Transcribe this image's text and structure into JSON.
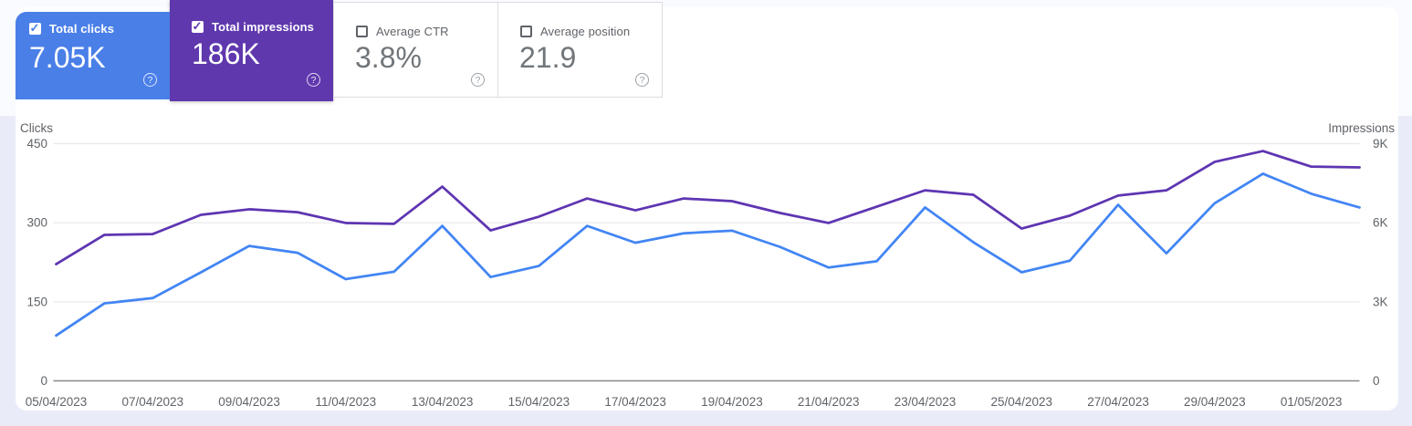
{
  "tiles": [
    {
      "label": "Total clicks",
      "value": "7.05K",
      "checked": true,
      "color": "#4a7fe8"
    },
    {
      "label": "Total impressions",
      "value": "186K",
      "checked": true,
      "color": "#5f38ae"
    },
    {
      "label": "Average CTR",
      "value": "3.8%",
      "checked": false
    },
    {
      "label": "Average position",
      "value": "21.9",
      "checked": false
    }
  ],
  "help_icon_symbol": "?",
  "chart_data": {
    "type": "line",
    "x": [
      "05/04/2023",
      "06/04/2023",
      "07/04/2023",
      "08/04/2023",
      "09/04/2023",
      "10/04/2023",
      "11/04/2023",
      "12/04/2023",
      "13/04/2023",
      "14/04/2023",
      "15/04/2023",
      "16/04/2023",
      "17/04/2023",
      "18/04/2023",
      "19/04/2023",
      "20/04/2023",
      "21/04/2023",
      "22/04/2023",
      "23/04/2023",
      "24/04/2023",
      "25/04/2023",
      "26/04/2023",
      "27/04/2023",
      "28/04/2023",
      "29/04/2023",
      "30/04/2023",
      "01/05/2023",
      "02/05/2023"
    ],
    "x_tick_labels": [
      "05/04/2023",
      "07/04/2023",
      "09/04/2023",
      "11/04/2023",
      "13/04/2023",
      "15/04/2023",
      "17/04/2023",
      "19/04/2023",
      "21/04/2023",
      "23/04/2023",
      "25/04/2023",
      "27/04/2023",
      "29/04/2023",
      "01/05/2023"
    ],
    "series": [
      {
        "name": "Clicks",
        "color": "#4285f4",
        "axis": "left",
        "values": [
          86,
          147,
          157,
          206,
          256,
          243,
          193,
          207,
          294,
          197,
          218,
          294,
          262,
          280,
          285,
          254,
          215,
          227,
          329,
          263,
          206,
          228,
          334,
          242,
          337,
          393,
          355,
          329
        ]
      },
      {
        "name": "Impressions",
        "color": "#5e35b1",
        "axis": "right",
        "values": [
          4430,
          5540,
          5570,
          6300,
          6510,
          6400,
          5990,
          5960,
          7370,
          5710,
          6230,
          6920,
          6470,
          6920,
          6820,
          6370,
          5990,
          6610,
          7230,
          7060,
          5780,
          6270,
          7030,
          7230,
          8310,
          8720,
          8130,
          8100
        ]
      }
    ],
    "left_axis": {
      "label": "Clicks",
      "max": 450,
      "ticks": [
        0,
        150,
        300,
        450
      ],
      "tick_labels": [
        "0",
        "150",
        "300",
        "450"
      ]
    },
    "right_axis": {
      "label": "Impressions",
      "max": 9000,
      "ticks": [
        0,
        3000,
        6000,
        9000
      ],
      "tick_labels": [
        "0",
        "3K",
        "6K",
        "9K"
      ]
    },
    "grid": true,
    "legend": "none"
  }
}
